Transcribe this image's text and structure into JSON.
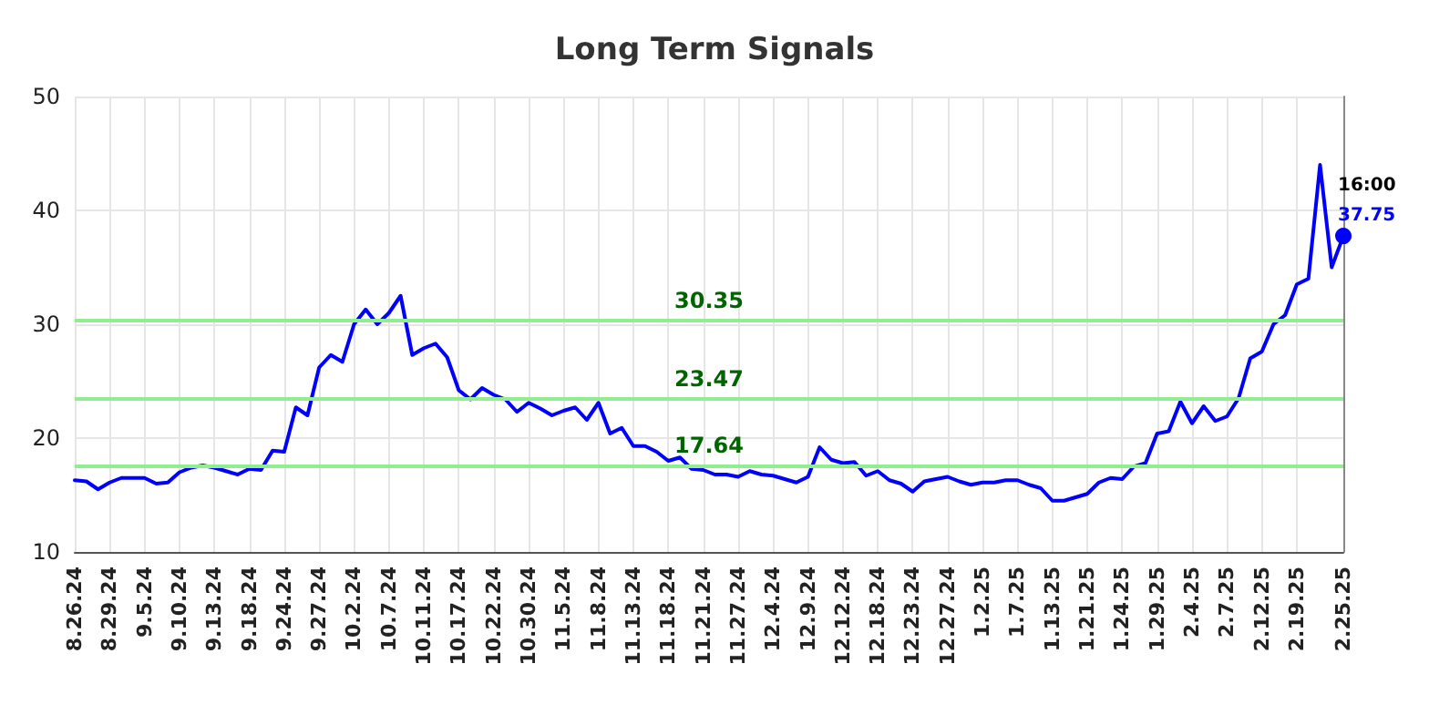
{
  "chart_data": {
    "type": "line",
    "title": "Long Term Signals",
    "categories": [
      "8.26.24",
      null,
      null,
      "8.29.24",
      null,
      null,
      "9.5.24",
      null,
      null,
      "9.10.24",
      null,
      null,
      "9.13.24",
      null,
      null,
      "9.18.24",
      null,
      null,
      "9.24.24",
      null,
      null,
      "9.27.24",
      null,
      null,
      "10.2.24",
      null,
      null,
      "10.7.24",
      null,
      null,
      "10.11.24",
      null,
      null,
      "10.17.24",
      null,
      null,
      "10.22.24",
      null,
      null,
      "10.30.24",
      null,
      null,
      "11.5.24",
      null,
      null,
      "11.8.24",
      null,
      null,
      "11.13.24",
      null,
      null,
      "11.18.24",
      null,
      null,
      "11.21.24",
      null,
      null,
      "11.27.24",
      null,
      null,
      "12.4.24",
      null,
      null,
      "12.9.24",
      null,
      null,
      "12.12.24",
      null,
      null,
      "12.18.24",
      null,
      null,
      "12.23.24",
      null,
      null,
      "12.27.24",
      null,
      null,
      "1.2.25",
      null,
      null,
      "1.7.25",
      null,
      null,
      "1.13.25",
      null,
      null,
      "1.21.25",
      null,
      null,
      "1.24.25",
      null,
      null,
      "1.29.25",
      null,
      null,
      "2.4.25",
      null,
      null,
      "2.7.25",
      null,
      null,
      "2.12.25",
      null,
      null,
      "2.19.25",
      null,
      null,
      null,
      "2.25.25"
    ],
    "series": [
      {
        "color": "#0000ff",
        "values": [
          16.3,
          16.2,
          15.5,
          16.1,
          16.5,
          16.5,
          16.5,
          16.0,
          16.1,
          17.0,
          17.4,
          17.6,
          17.4,
          17.1,
          16.8,
          17.3,
          17.2,
          18.9,
          18.8,
          22.7,
          22.0,
          26.2,
          27.3,
          26.7,
          30.0,
          31.3,
          30.0,
          31.0,
          32.5,
          27.3,
          27.9,
          28.3,
          27.1,
          24.2,
          23.4,
          24.4,
          23.8,
          23.4,
          22.3,
          23.1,
          22.6,
          22.0,
          22.4,
          22.7,
          21.6,
          23.1,
          20.4,
          20.9,
          19.3,
          19.3,
          18.8,
          18.0,
          18.3,
          17.3,
          17.2,
          16.8,
          16.8,
          16.6,
          17.1,
          16.8,
          16.7,
          16.4,
          16.1,
          16.6,
          19.2,
          18.1,
          17.8,
          17.9,
          16.7,
          17.1,
          16.3,
          16.0,
          15.3,
          16.2,
          16.4,
          16.6,
          16.2,
          15.9,
          16.1,
          16.1,
          16.3,
          16.3,
          15.9,
          15.6,
          14.5,
          14.5,
          14.8,
          15.1,
          16.1,
          16.5,
          16.4,
          17.5,
          17.8,
          20.4,
          20.6,
          23.2,
          21.3,
          22.8,
          21.5,
          21.9,
          23.5,
          27.0,
          27.6,
          30.0,
          30.8,
          33.5,
          34.0,
          44.0,
          35.0,
          37.75
        ],
        "value_labels": [
          null,
          null,
          null,
          null,
          null,
          null,
          null,
          null,
          null,
          null,
          null,
          null,
          null,
          null,
          null,
          null,
          null,
          null,
          null,
          null,
          null,
          null,
          null,
          null,
          null,
          null,
          null,
          null,
          null,
          null,
          null,
          null,
          null,
          null,
          null,
          null,
          null,
          null,
          null,
          null,
          null,
          null,
          null,
          null,
          null,
          null,
          null,
          null,
          null,
          null,
          null,
          null,
          null,
          null,
          null,
          null,
          null,
          null,
          null,
          null,
          null,
          null,
          null,
          null,
          null,
          null,
          null,
          null,
          null,
          null,
          null,
          null,
          null,
          null,
          null,
          null,
          null,
          null,
          null,
          null,
          null,
          null,
          null,
          null,
          null,
          null,
          null,
          null,
          null,
          null,
          null,
          null,
          null,
          null,
          null,
          null,
          null,
          null,
          null,
          null,
          null,
          null,
          null,
          null,
          null,
          null,
          null,
          null,
          null,
          "37.75"
        ]
      }
    ],
    "ylim": [
      10,
      50
    ],
    "yticks": [
      10,
      20,
      30,
      40,
      50
    ],
    "grid": true,
    "marker": "none",
    "line_style": "solid",
    "ref_lines": [
      {
        "axis": "y",
        "value": 30.35,
        "label": "30.35",
        "color": "#90ee90"
      },
      {
        "axis": "y",
        "value": 23.47,
        "label": "23.47",
        "color": "#90ee90"
      },
      {
        "axis": "y",
        "value": 17.64,
        "label": "17.64",
        "color": "#90ee90"
      }
    ],
    "annotations": [
      {
        "text": "16:00",
        "x": "2.25.25",
        "y": 37.75
      }
    ]
  }
}
